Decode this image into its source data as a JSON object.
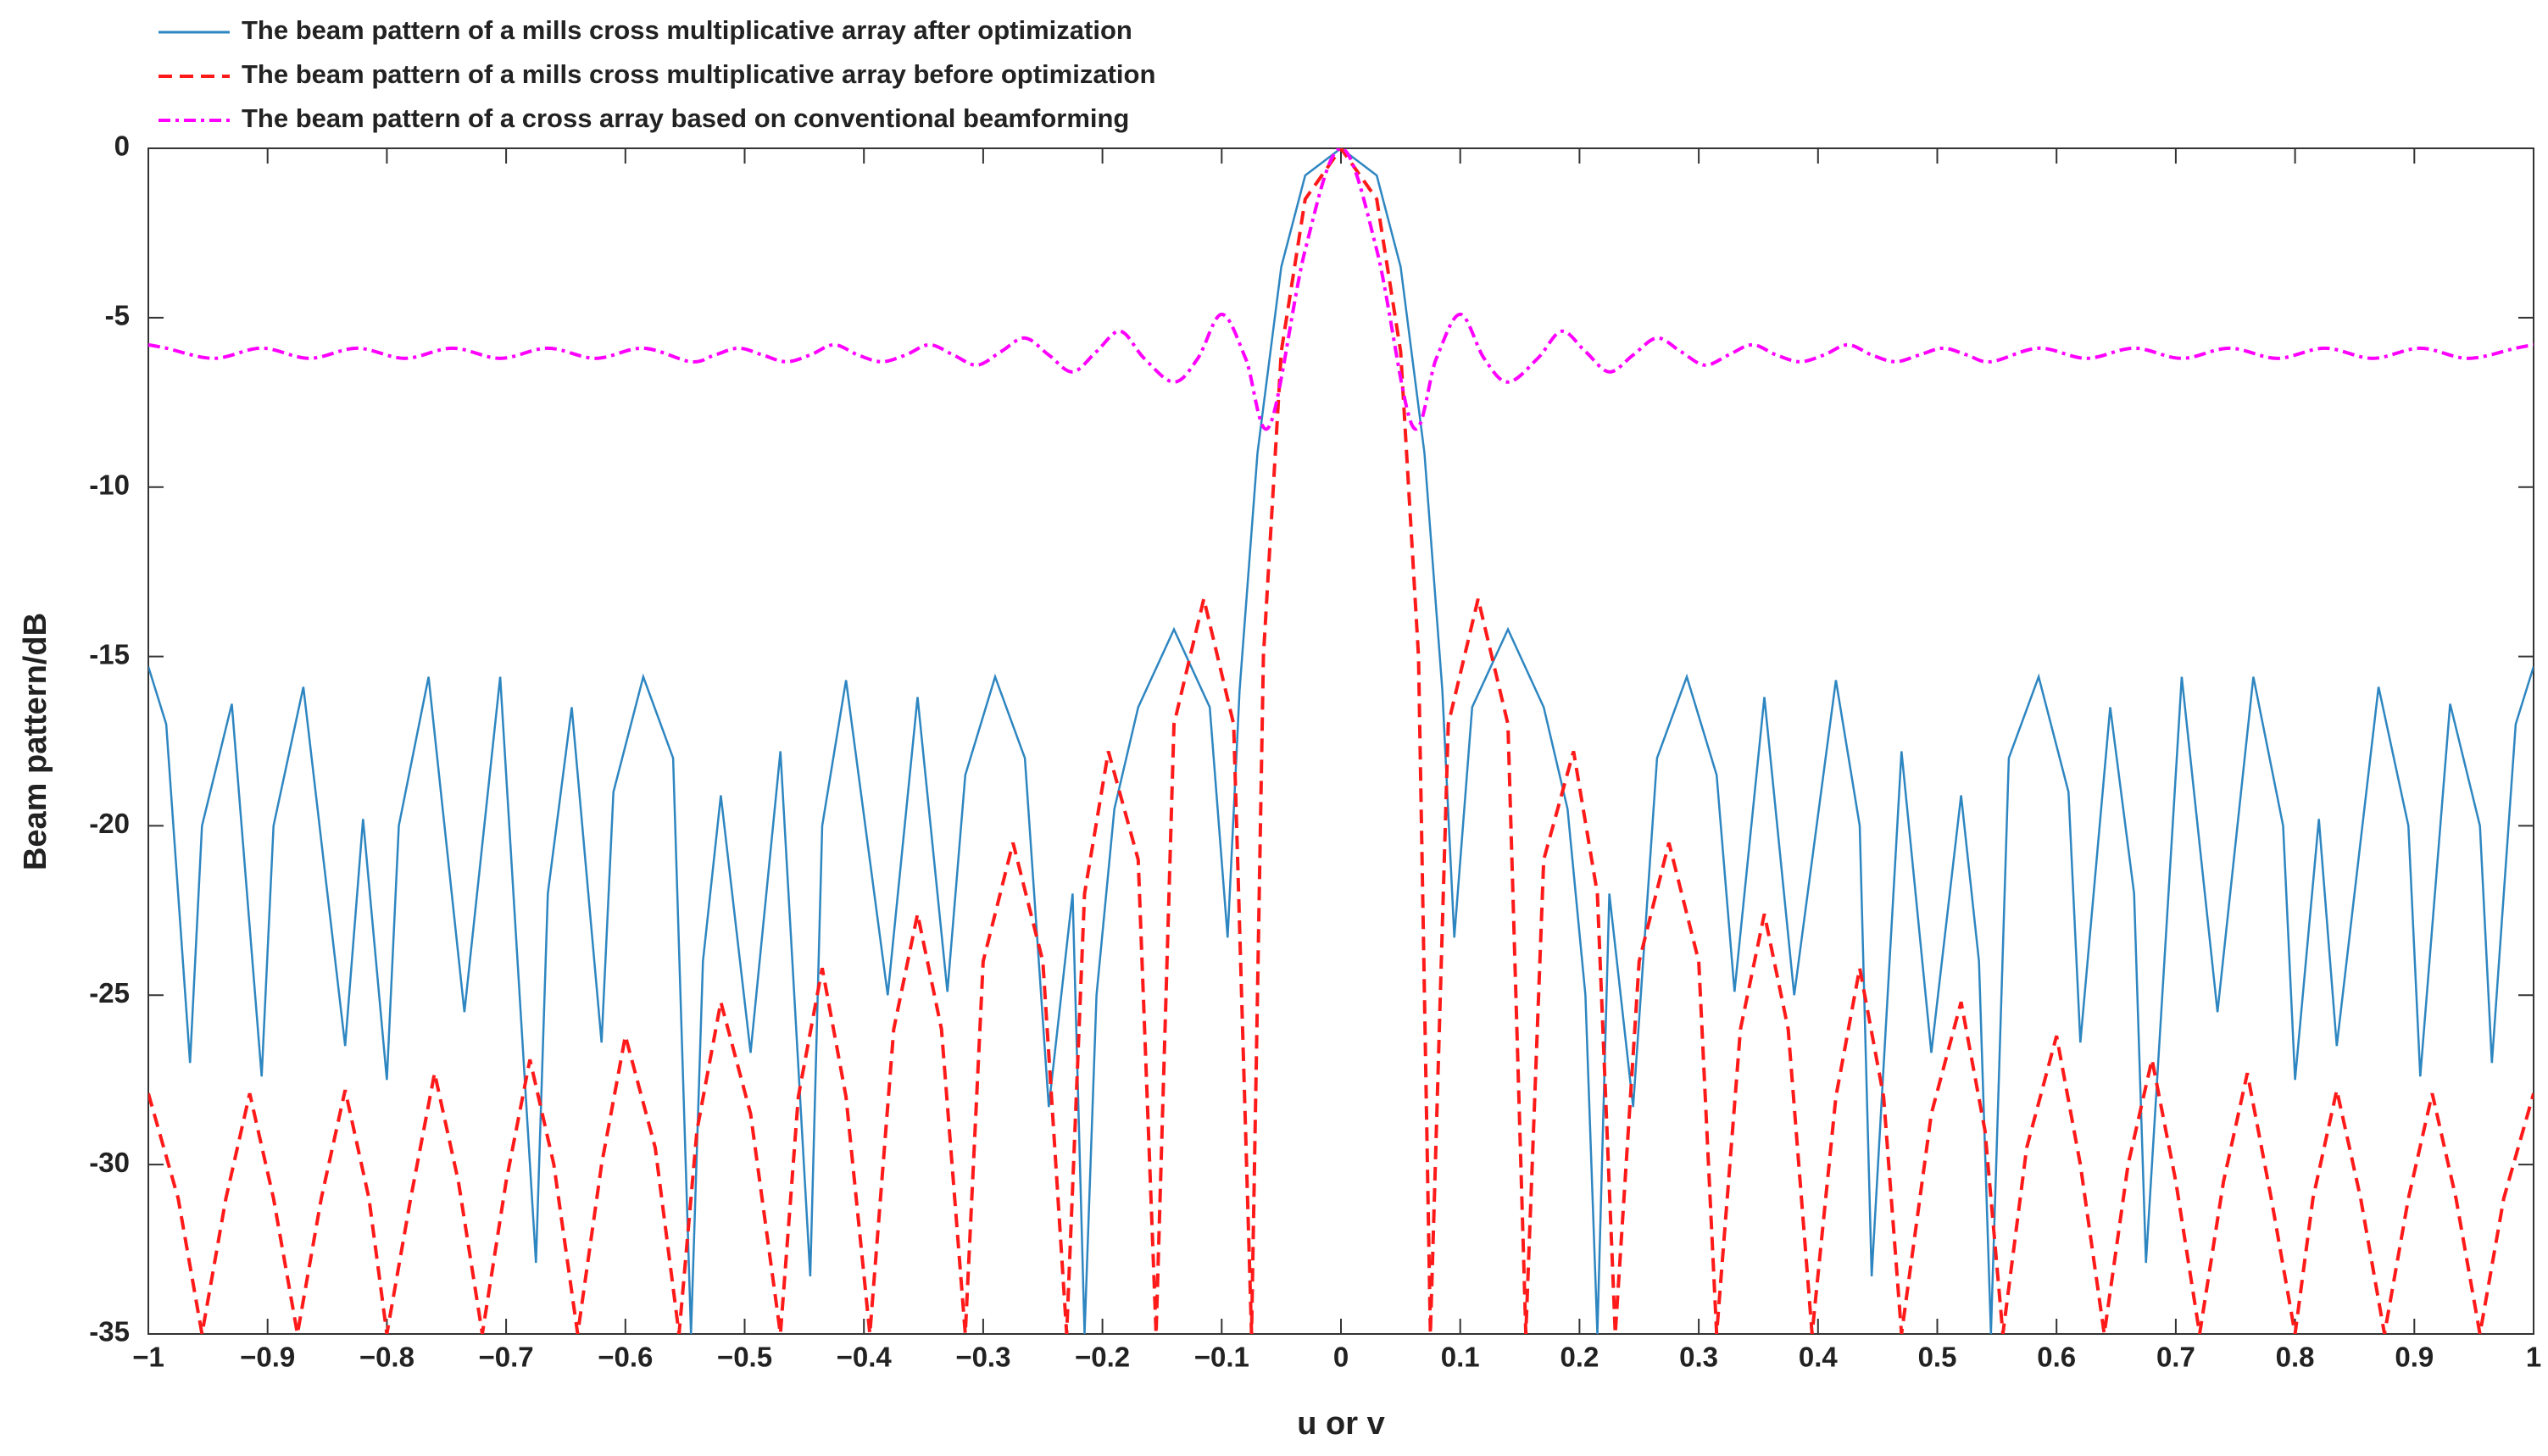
{
  "chart_data": {
    "type": "line",
    "xlabel": "u or v",
    "ylabel": "Beam pattern/dB",
    "xlim": [
      -1,
      1
    ],
    "ylim": [
      -35,
      0
    ],
    "xticks": [
      {
        "value": -1,
        "label": "−1"
      },
      {
        "value": -0.9,
        "label": "−0.9"
      },
      {
        "value": -0.8,
        "label": "−0.8"
      },
      {
        "value": -0.7,
        "label": "−0.7"
      },
      {
        "value": -0.6,
        "label": "−0.6"
      },
      {
        "value": -0.5,
        "label": "−0.5"
      },
      {
        "value": -0.4,
        "label": "−0.4"
      },
      {
        "value": -0.3,
        "label": "−0.3"
      },
      {
        "value": -0.2,
        "label": "−0.2"
      },
      {
        "value": -0.1,
        "label": "−0.1"
      },
      0,
      0.1,
      0.2,
      0.3,
      0.4,
      0.5,
      0.6,
      0.7,
      0.8,
      0.9,
      1
    ],
    "yticks": [
      0,
      {
        "value": -5,
        "label": "-5"
      },
      {
        "value": -10,
        "label": "-10"
      },
      {
        "value": -15,
        "label": "-15"
      },
      {
        "value": -20,
        "label": "-20"
      },
      {
        "value": -25,
        "label": "-25"
      },
      {
        "value": -30,
        "label": "-30"
      },
      {
        "value": -35,
        "label": "-35"
      }
    ],
    "grid": false,
    "legend": "top-left",
    "series": [
      {
        "name": "The beam pattern of a mills cross multiplicative array after optimization",
        "color": "#2e86c1",
        "style": "solid",
        "smooth": false,
        "x": [
          -1,
          -0.985,
          -0.965,
          -0.955,
          -0.93,
          -0.905,
          -0.895,
          -0.87,
          -0.835,
          -0.82,
          -0.8,
          -0.79,
          -0.765,
          -0.735,
          -0.705,
          -0.675,
          -0.665,
          -0.645,
          -0.62,
          -0.61,
          -0.585,
          -0.56,
          -0.545,
          -0.535,
          -0.52,
          -0.495,
          -0.47,
          -0.445,
          -0.435,
          -0.415,
          -0.38,
          -0.355,
          -0.33,
          -0.315,
          -0.29,
          -0.265,
          -0.245,
          -0.225,
          -0.215,
          -0.205,
          -0.19,
          -0.17,
          -0.14,
          -0.11,
          -0.095,
          -0.085,
          -0.07,
          -0.05,
          -0.03,
          0,
          0.03,
          0.05,
          0.07,
          0.085,
          0.095,
          0.11,
          0.14,
          0.17,
          0.19,
          0.205,
          0.215,
          0.225,
          0.245,
          0.265,
          0.29,
          0.315,
          0.33,
          0.355,
          0.38,
          0.415,
          0.435,
          0.445,
          0.47,
          0.495,
          0.52,
          0.535,
          0.545,
          0.56,
          0.585,
          0.61,
          0.62,
          0.645,
          0.665,
          0.675,
          0.705,
          0.735,
          0.765,
          0.79,
          0.8,
          0.82,
          0.835,
          0.87,
          0.895,
          0.905,
          0.93,
          0.955,
          0.965,
          0.985,
          1
        ],
        "values": [
          -15.3,
          -17,
          -27,
          -20,
          -16.4,
          -27.4,
          -20,
          -15.9,
          -26.5,
          -19.8,
          -27.5,
          -20,
          -15.6,
          -25.5,
          -15.6,
          -32.9,
          -22,
          -16.5,
          -26.4,
          -19,
          -15.6,
          -18,
          -35,
          -24,
          -19.1,
          -26.7,
          -17.8,
          -33.3,
          -20,
          -15.7,
          -25,
          -16.2,
          -24.9,
          -18.5,
          -15.6,
          -18,
          -28.3,
          -22,
          -35,
          -25,
          -19.5,
          -16.5,
          -14.2,
          -16.5,
          -23.3,
          -16,
          -9,
          -3.5,
          -0.8,
          0,
          -0.8,
          -3.5,
          -9,
          -16,
          -23.3,
          -16.5,
          -14.2,
          -16.5,
          -19.5,
          -25,
          -35,
          -22,
          -28.3,
          -18,
          -15.6,
          -18.5,
          -24.9,
          -16.2,
          -25,
          -15.7,
          -20,
          -33.3,
          -17.8,
          -26.7,
          -19.1,
          -24,
          -35,
          -18,
          -15.6,
          -19,
          -26.4,
          -16.5,
          -22,
          -32.9,
          -15.6,
          -25.5,
          -15.6,
          -20,
          -27.5,
          -19.8,
          -26.5,
          -15.9,
          -20,
          -27.4,
          -16.4,
          -20,
          -27,
          -17,
          -15.3
        ]
      },
      {
        "name": "The beam pattern of a mills cross multiplicative array before optimization",
        "color": "#ff1a1a",
        "style": "dashed",
        "smooth": false,
        "x": [
          -1,
          -0.975,
          -0.955,
          -0.935,
          -0.915,
          -0.895,
          -0.875,
          -0.855,
          -0.835,
          -0.815,
          -0.8,
          -0.78,
          -0.76,
          -0.74,
          -0.72,
          -0.7,
          -0.68,
          -0.66,
          -0.64,
          -0.62,
          -0.6,
          -0.575,
          -0.555,
          -0.54,
          -0.52,
          -0.495,
          -0.47,
          -0.455,
          -0.435,
          -0.415,
          -0.395,
          -0.375,
          -0.355,
          -0.335,
          -0.315,
          -0.3,
          -0.275,
          -0.25,
          -0.23,
          -0.215,
          -0.195,
          -0.17,
          -0.155,
          -0.14,
          -0.115,
          -0.09,
          -0.075,
          -0.065,
          -0.05,
          -0.03,
          0,
          0.03,
          0.05,
          0.065,
          0.075,
          0.09,
          0.115,
          0.14,
          0.155,
          0.17,
          0.195,
          0.215,
          0.23,
          0.25,
          0.275,
          0.3,
          0.315,
          0.335,
          0.355,
          0.375,
          0.395,
          0.415,
          0.435,
          0.455,
          0.47,
          0.495,
          0.52,
          0.54,
          0.555,
          0.575,
          0.6,
          0.62,
          0.64,
          0.66,
          0.68,
          0.7,
          0.72,
          0.74,
          0.76,
          0.78,
          0.8,
          0.815,
          0.835,
          0.855,
          0.875,
          0.895,
          0.915,
          0.935,
          0.955,
          0.975,
          1
        ],
        "values": [
          -27.9,
          -31,
          -35,
          -31,
          -27.9,
          -31,
          -35,
          -31,
          -27.8,
          -31,
          -35,
          -31,
          -27.3,
          -30.5,
          -35,
          -30.5,
          -26.9,
          -30,
          -35,
          -30,
          -26.2,
          -29.5,
          -35,
          -29,
          -25.2,
          -28.5,
          -35,
          -28,
          -24.2,
          -28,
          -35,
          -26,
          -22.6,
          -26,
          -35,
          -24,
          -20.5,
          -24,
          -35,
          -22,
          -17.8,
          -21,
          -35,
          -17,
          -13.3,
          -17,
          -35,
          -15,
          -6,
          -1.5,
          0,
          -1.5,
          -6,
          -15,
          -35,
          -17,
          -13.3,
          -17,
          -35,
          -21,
          -17.8,
          -22,
          -35,
          -24,
          -20.5,
          -24,
          -35,
          -26,
          -22.6,
          -26,
          -35,
          -28,
          -24.2,
          -28,
          -35,
          -28.5,
          -25.2,
          -29,
          -35,
          -29.5,
          -26.2,
          -30,
          -35,
          -30,
          -26.9,
          -30.5,
          -35,
          -30.5,
          -27.3,
          -31,
          -35,
          -31,
          -27.8,
          -31,
          -35,
          -31,
          -27.9,
          -31,
          -35,
          -31,
          -27.9
        ]
      },
      {
        "name": "The beam pattern of a cross array based on conventional beamforming",
        "color": "#ff00ff",
        "style": "dashdot",
        "smooth": true,
        "x": [
          -1,
          -0.985,
          -0.945,
          -0.905,
          -0.865,
          -0.825,
          -0.785,
          -0.745,
          -0.705,
          -0.665,
          -0.625,
          -0.585,
          -0.545,
          -0.525,
          -0.505,
          -0.485,
          -0.465,
          -0.445,
          -0.425,
          -0.405,
          -0.385,
          -0.365,
          -0.345,
          -0.325,
          -0.305,
          -0.285,
          -0.265,
          -0.245,
          -0.225,
          -0.205,
          -0.185,
          -0.165,
          -0.14,
          -0.12,
          -0.1,
          -0.08,
          -0.06,
          -0.03,
          0,
          0.03,
          0.06,
          0.08,
          0.1,
          0.12,
          0.14,
          0.165,
          0.185,
          0.205,
          0.225,
          0.245,
          0.265,
          0.285,
          0.305,
          0.325,
          0.345,
          0.365,
          0.385,
          0.405,
          0.425,
          0.445,
          0.465,
          0.485,
          0.505,
          0.525,
          0.545,
          0.585,
          0.625,
          0.665,
          0.705,
          0.745,
          0.785,
          0.825,
          0.865,
          0.905,
          0.945,
          0.985,
          1
        ],
        "values": [
          -5.8,
          -5.9,
          -6.2,
          -5.9,
          -6.2,
          -5.9,
          -6.2,
          -5.9,
          -6.2,
          -5.9,
          -6.2,
          -5.9,
          -6.3,
          -6.1,
          -5.9,
          -6.1,
          -6.3,
          -6.1,
          -5.8,
          -6.1,
          -6.3,
          -6.1,
          -5.8,
          -6.1,
          -6.4,
          -6,
          -5.6,
          -6.1,
          -6.6,
          -6,
          -5.4,
          -6.2,
          -6.9,
          -6.2,
          -4.9,
          -6.2,
          -8.2,
          -3,
          0,
          -3,
          -8.2,
          -6.2,
          -4.9,
          -6.2,
          -6.9,
          -6.2,
          -5.4,
          -6,
          -6.6,
          -6.1,
          -5.6,
          -6,
          -6.4,
          -6.1,
          -5.8,
          -6.1,
          -6.3,
          -6.1,
          -5.8,
          -6.1,
          -6.3,
          -6.1,
          -5.9,
          -6.1,
          -6.3,
          -5.9,
          -6.2,
          -5.9,
          -6.2,
          -5.9,
          -6.2,
          -5.9,
          -6.2,
          -5.9,
          -6.2,
          -5.9,
          -5.8
        ]
      }
    ]
  }
}
